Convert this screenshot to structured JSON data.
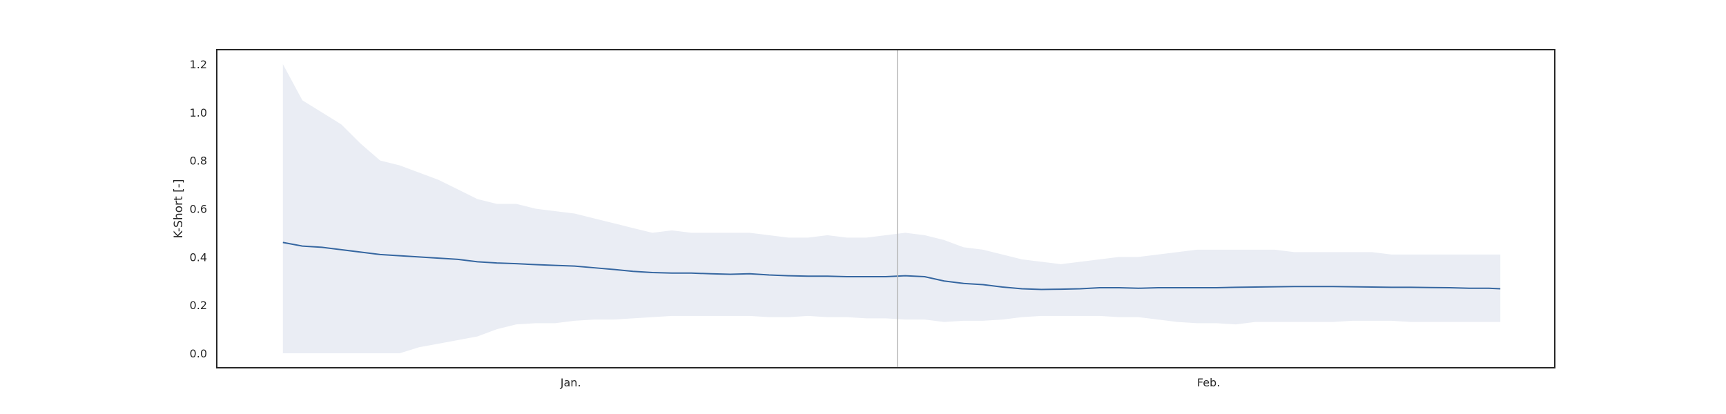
{
  "chart_data": {
    "type": "line",
    "title": "",
    "xlabel": "",
    "ylabel": "K-Short [-]",
    "xlim": [
      -8.5,
      163.5
    ],
    "ylim": [
      -0.06,
      1.26
    ],
    "y_ticks": [
      0.0,
      0.2,
      0.4,
      0.6,
      0.8,
      1.0,
      1.2
    ],
    "x_ticks": [
      {
        "x": 37,
        "label": "Jan."
      },
      {
        "x": 119,
        "label": "Feb."
      }
    ],
    "vertical_line_x": 79,
    "grid": false,
    "legend": "none",
    "colors": {
      "line": "#3566a0",
      "band": "#eaedf4",
      "vline": "#b7b7b7",
      "frame": "#262626"
    },
    "series": [
      {
        "x": [
          0,
          2.5,
          5,
          7.5,
          10,
          12.5,
          15,
          17.5,
          20,
          22.5,
          25,
          27.5,
          30,
          32.5,
          35,
          37.5,
          40,
          42.5,
          45,
          47.5,
          50,
          52.5,
          55,
          57.5,
          60,
          62.5,
          65,
          67.5,
          70,
          72.5,
          75,
          77.5,
          80,
          82.5,
          85,
          87.5,
          90,
          92.5,
          95,
          97.5,
          100,
          102.5,
          105,
          107.5,
          110,
          112.5,
          115,
          117.5,
          120,
          122.5,
          125,
          127.5,
          130,
          132.5,
          135,
          137.5,
          140,
          142.5,
          145,
          147.5,
          150,
          152.5,
          155,
          156.5
        ],
        "values": [
          0.46,
          0.445,
          0.44,
          0.43,
          0.42,
          0.41,
          0.405,
          0.4,
          0.395,
          0.39,
          0.38,
          0.375,
          0.372,
          0.368,
          0.365,
          0.362,
          0.355,
          0.348,
          0.34,
          0.335,
          0.333,
          0.333,
          0.33,
          0.328,
          0.33,
          0.325,
          0.322,
          0.32,
          0.32,
          0.318,
          0.318,
          0.318,
          0.322,
          0.318,
          0.3,
          0.29,
          0.285,
          0.275,
          0.268,
          0.265,
          0.266,
          0.268,
          0.272,
          0.272,
          0.27,
          0.272,
          0.272,
          0.272,
          0.272,
          0.274,
          0.275,
          0.276,
          0.277,
          0.277,
          0.277,
          0.276,
          0.275,
          0.274,
          0.274,
          0.273,
          0.272,
          0.27,
          0.27,
          0.268
        ],
        "upper": [
          1.2,
          1.05,
          1.0,
          0.95,
          0.87,
          0.8,
          0.78,
          0.75,
          0.72,
          0.68,
          0.64,
          0.62,
          0.62,
          0.6,
          0.59,
          0.58,
          0.56,
          0.54,
          0.52,
          0.5,
          0.51,
          0.5,
          0.5,
          0.5,
          0.5,
          0.49,
          0.48,
          0.48,
          0.49,
          0.48,
          0.48,
          0.49,
          0.5,
          0.49,
          0.47,
          0.44,
          0.43,
          0.41,
          0.39,
          0.38,
          0.37,
          0.38,
          0.39,
          0.4,
          0.4,
          0.41,
          0.42,
          0.43,
          0.43,
          0.43,
          0.43,
          0.43,
          0.42,
          0.42,
          0.42,
          0.42,
          0.42,
          0.41,
          0.41,
          0.41,
          0.41,
          0.41,
          0.41,
          0.41
        ],
        "lower": [
          0.0,
          0.0,
          0.0,
          0.0,
          0.0,
          0.0,
          0.0,
          0.025,
          0.04,
          0.055,
          0.07,
          0.1,
          0.12,
          0.125,
          0.125,
          0.135,
          0.14,
          0.14,
          0.145,
          0.15,
          0.155,
          0.155,
          0.155,
          0.155,
          0.155,
          0.15,
          0.15,
          0.155,
          0.15,
          0.15,
          0.145,
          0.145,
          0.14,
          0.14,
          0.13,
          0.135,
          0.135,
          0.14,
          0.15,
          0.155,
          0.155,
          0.155,
          0.155,
          0.15,
          0.15,
          0.14,
          0.13,
          0.125,
          0.125,
          0.12,
          0.13,
          0.13,
          0.13,
          0.13,
          0.13,
          0.135,
          0.135,
          0.135,
          0.13,
          0.13,
          0.13,
          0.13,
          0.13,
          0.13
        ]
      }
    ]
  }
}
